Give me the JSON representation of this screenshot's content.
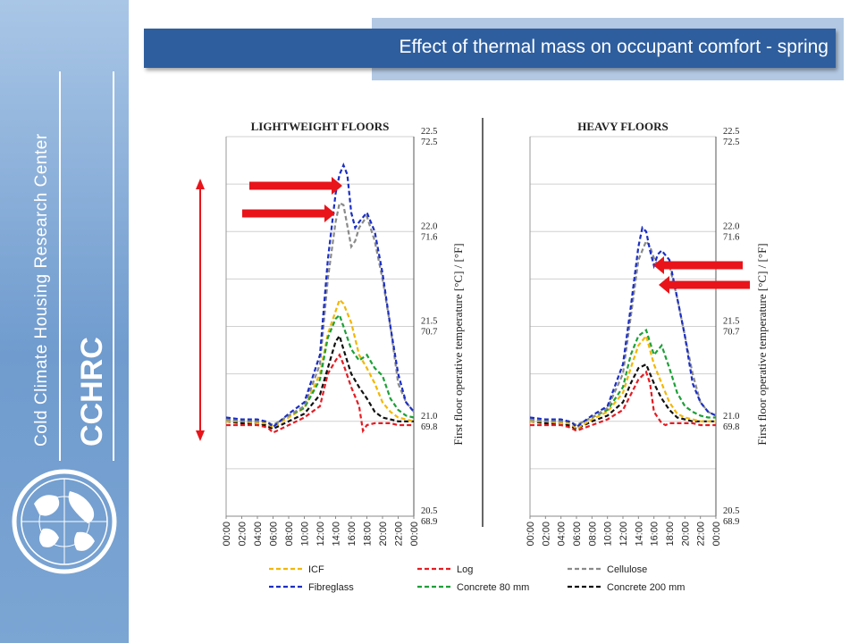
{
  "slide": {
    "title": "Effect of thermal mass on occupant comfort - spring",
    "org_name": "Cold Climate Housing Research Center",
    "org_abbr": "CCHRC"
  },
  "colors": {
    "sidebar": "#7ba5d3",
    "title_bar": "#2e5e9e",
    "arrow": "#e8141a",
    "ICF": "#f2b705",
    "Log": "#e51c23",
    "Cellulose": "#8a8a8a",
    "Fibreglass": "#1b2fc4",
    "Concrete 80 mm": "#1da038",
    "Concrete 200 mm": "#111111"
  },
  "chart_data": [
    {
      "type": "line",
      "title": "LIGHTWEIGHT FLOORS",
      "xlabel": "",
      "ylabel": "First floor operative temperature [°C] / [°F]",
      "x_ticks": [
        "00:00",
        "02:00",
        "04:00",
        "06:00",
        "08:00",
        "10:00",
        "12:00",
        "14:00",
        "16:00",
        "18:00",
        "20:00",
        "22:00",
        "00:00"
      ],
      "y_tick_labels": [
        {
          "c": "22.5",
          "f": "72.5",
          "v": 22.5
        },
        {
          "c": "22.0",
          "f": "71.6",
          "v": 22.0
        },
        {
          "c": "21.5",
          "f": "70.7",
          "v": 21.5
        },
        {
          "c": "21.0",
          "f": "69.8",
          "v": 21.0
        },
        {
          "c": "20.5",
          "f": "68.9",
          "v": 20.5
        }
      ],
      "ylim": [
        20.5,
        22.5
      ],
      "xlim": [
        0,
        24
      ],
      "grid": true,
      "series": [
        {
          "name": "ICF",
          "x": [
            0,
            2,
            4,
            5,
            5.5,
            6,
            8,
            10,
            12,
            13,
            14,
            14.5,
            15,
            16,
            17,
            18,
            19,
            20,
            21,
            22,
            23,
            24
          ],
          "y": [
            21.0,
            21.0,
            20.99,
            20.99,
            20.98,
            20.97,
            21.02,
            21.07,
            21.25,
            21.46,
            21.58,
            21.64,
            21.62,
            21.52,
            21.35,
            21.28,
            21.2,
            21.1,
            21.05,
            21.02,
            21.01,
            21.0
          ]
        },
        {
          "name": "Log",
          "x": [
            0,
            2,
            4,
            5,
            5.5,
            6,
            8,
            10,
            12,
            13,
            14,
            14.5,
            15,
            16,
            17,
            17.5,
            18,
            19,
            20,
            21,
            22,
            23,
            24
          ],
          "y": [
            20.98,
            20.98,
            20.98,
            20.97,
            20.96,
            20.94,
            20.98,
            21.02,
            21.08,
            21.25,
            21.32,
            21.35,
            21.3,
            21.18,
            21.08,
            20.95,
            20.98,
            20.99,
            20.99,
            20.99,
            20.98,
            20.98,
            20.98
          ]
        },
        {
          "name": "Cellulose",
          "x": [
            0,
            2,
            4,
            5,
            5.5,
            6,
            8,
            10,
            12,
            13,
            14,
            14.5,
            15,
            16,
            16.5,
            17,
            18,
            19,
            20,
            21,
            22,
            23,
            24
          ],
          "y": [
            21.01,
            21.0,
            21.0,
            21.0,
            20.99,
            20.98,
            21.03,
            21.08,
            21.3,
            21.75,
            22.05,
            22.15,
            22.14,
            21.92,
            21.95,
            22.02,
            22.08,
            21.95,
            21.75,
            21.5,
            21.2,
            21.1,
            21.05
          ]
        },
        {
          "name": "Fibreglass",
          "x": [
            0,
            2,
            4,
            5,
            5.5,
            6,
            8,
            10,
            12,
            13,
            14,
            14.5,
            15,
            15.5,
            16,
            16.5,
            17,
            18,
            19,
            20,
            21,
            22,
            23,
            24
          ],
          "y": [
            21.02,
            21.01,
            21.01,
            21.0,
            20.99,
            20.97,
            21.04,
            21.1,
            21.35,
            21.85,
            22.2,
            22.3,
            22.35,
            22.3,
            22.1,
            22.02,
            22.05,
            22.1,
            22.0,
            21.78,
            21.5,
            21.25,
            21.1,
            21.05
          ]
        },
        {
          "name": "Concrete 80 mm",
          "x": [
            0,
            2,
            4,
            5,
            5.5,
            6,
            8,
            10,
            12,
            13,
            14,
            14.5,
            15,
            16,
            17,
            18,
            19,
            20,
            21,
            22,
            23,
            24
          ],
          "y": [
            21.01,
            21.0,
            21.0,
            21.0,
            20.99,
            20.98,
            21.03,
            21.07,
            21.22,
            21.44,
            21.54,
            21.56,
            21.5,
            21.38,
            21.32,
            21.35,
            21.28,
            21.24,
            21.12,
            21.06,
            21.03,
            21.02
          ]
        },
        {
          "name": "Concrete 200 mm",
          "x": [
            0,
            2,
            4,
            5,
            5.5,
            6,
            8,
            10,
            12,
            13,
            14,
            14.5,
            15,
            16,
            17,
            18,
            19,
            20,
            21,
            22,
            23,
            24
          ],
          "y": [
            21.0,
            20.99,
            20.99,
            20.98,
            20.97,
            20.96,
            21.0,
            21.04,
            21.14,
            21.28,
            21.42,
            21.45,
            21.38,
            21.25,
            21.18,
            21.12,
            21.05,
            21.02,
            21.01,
            21.0,
            21.0,
            21.0
          ]
        }
      ]
    },
    {
      "type": "line",
      "title": "HEAVY FLOORS",
      "xlabel": "",
      "ylabel": "First floor operative temperature [°C] / [°F]",
      "x_ticks": [
        "00:00",
        "02:00",
        "04:00",
        "06:00",
        "08:00",
        "10:00",
        "12:00",
        "14:00",
        "16:00",
        "18:00",
        "20:00",
        "22:00",
        "00:00"
      ],
      "y_tick_labels": [
        {
          "c": "22.5",
          "f": "72.5",
          "v": 22.5
        },
        {
          "c": "22.0",
          "f": "71.6",
          "v": 22.0
        },
        {
          "c": "21.5",
          "f": "70.7",
          "v": 21.5
        },
        {
          "c": "21.0",
          "f": "69.8",
          "v": 21.0
        },
        {
          "c": "20.5",
          "f": "68.9",
          "v": 20.5
        }
      ],
      "ylim": [
        20.5,
        22.5
      ],
      "xlim": [
        0,
        24
      ],
      "grid": true,
      "series": [
        {
          "name": "ICF",
          "x": [
            0,
            2,
            4,
            5,
            5.5,
            6,
            8,
            10,
            12,
            13,
            14,
            15,
            16,
            17,
            18,
            19,
            20,
            21,
            22,
            23,
            24
          ],
          "y": [
            21.0,
            21.0,
            20.99,
            20.99,
            20.98,
            20.96,
            21.01,
            21.05,
            21.15,
            21.28,
            21.4,
            21.45,
            21.3,
            21.2,
            21.1,
            21.04,
            21.02,
            21.01,
            21.0,
            21.0,
            21.0
          ]
        },
        {
          "name": "Log",
          "x": [
            0,
            2,
            4,
            5,
            5.5,
            6,
            8,
            10,
            12,
            13,
            14,
            15,
            15.5,
            16,
            17,
            17.5,
            18,
            19,
            20,
            21,
            22,
            23,
            24
          ],
          "y": [
            20.98,
            20.98,
            20.98,
            20.97,
            20.96,
            20.95,
            20.98,
            21.01,
            21.06,
            21.14,
            21.22,
            21.26,
            21.2,
            21.05,
            20.99,
            20.98,
            20.99,
            20.99,
            20.99,
            20.99,
            20.98,
            20.98,
            20.98
          ]
        },
        {
          "name": "Cellulose",
          "x": [
            0,
            2,
            4,
            5,
            5.5,
            6,
            8,
            10,
            12,
            13,
            14,
            15,
            15.5,
            16,
            16.5,
            17,
            18,
            19,
            20,
            21,
            22,
            23,
            24
          ],
          "y": [
            21.01,
            21.0,
            21.0,
            21.0,
            20.99,
            20.98,
            21.02,
            21.07,
            21.25,
            21.55,
            21.85,
            21.95,
            21.92,
            21.86,
            21.82,
            21.85,
            21.82,
            21.65,
            21.45,
            21.25,
            21.1,
            21.05,
            21.03
          ]
        },
        {
          "name": "Fibreglass",
          "x": [
            0,
            2,
            4,
            5,
            5.5,
            6,
            8,
            10,
            12,
            13,
            14,
            14.5,
            15,
            15.5,
            16,
            16.5,
            17,
            18,
            19,
            20,
            21,
            22,
            23,
            24
          ],
          "y": [
            21.02,
            21.01,
            21.01,
            21.0,
            20.99,
            20.97,
            21.03,
            21.08,
            21.3,
            21.6,
            21.92,
            22.02,
            22.0,
            21.9,
            21.82,
            21.88,
            21.9,
            21.85,
            21.65,
            21.45,
            21.2,
            21.1,
            21.05,
            21.03
          ]
        },
        {
          "name": "Concrete 80 mm",
          "x": [
            0,
            2,
            4,
            5,
            5.5,
            6,
            8,
            10,
            12,
            13,
            14,
            15,
            16,
            17,
            18,
            19,
            20,
            21,
            22,
            23,
            24
          ],
          "y": [
            21.01,
            21.0,
            21.0,
            21.0,
            20.99,
            20.98,
            21.02,
            21.06,
            21.18,
            21.35,
            21.45,
            21.48,
            21.35,
            21.4,
            21.28,
            21.15,
            21.08,
            21.05,
            21.03,
            21.02,
            21.02
          ]
        },
        {
          "name": "Concrete 200 mm",
          "x": [
            0,
            2,
            4,
            5,
            5.5,
            6,
            8,
            10,
            12,
            13,
            14,
            15,
            16,
            17,
            18,
            19,
            20,
            21,
            22,
            23,
            24
          ],
          "y": [
            21.0,
            20.99,
            20.99,
            20.98,
            20.97,
            20.96,
            21.0,
            21.03,
            21.1,
            21.2,
            21.28,
            21.3,
            21.2,
            21.12,
            21.06,
            21.02,
            21.01,
            21.0,
            21.0,
            21.0,
            21.0
          ]
        }
      ]
    }
  ],
  "legend": {
    "entries": [
      "ICF",
      "Log",
      "Cellulose",
      "Fibreglass",
      "Concrete 80 mm",
      "Concrete 200 mm"
    ]
  }
}
